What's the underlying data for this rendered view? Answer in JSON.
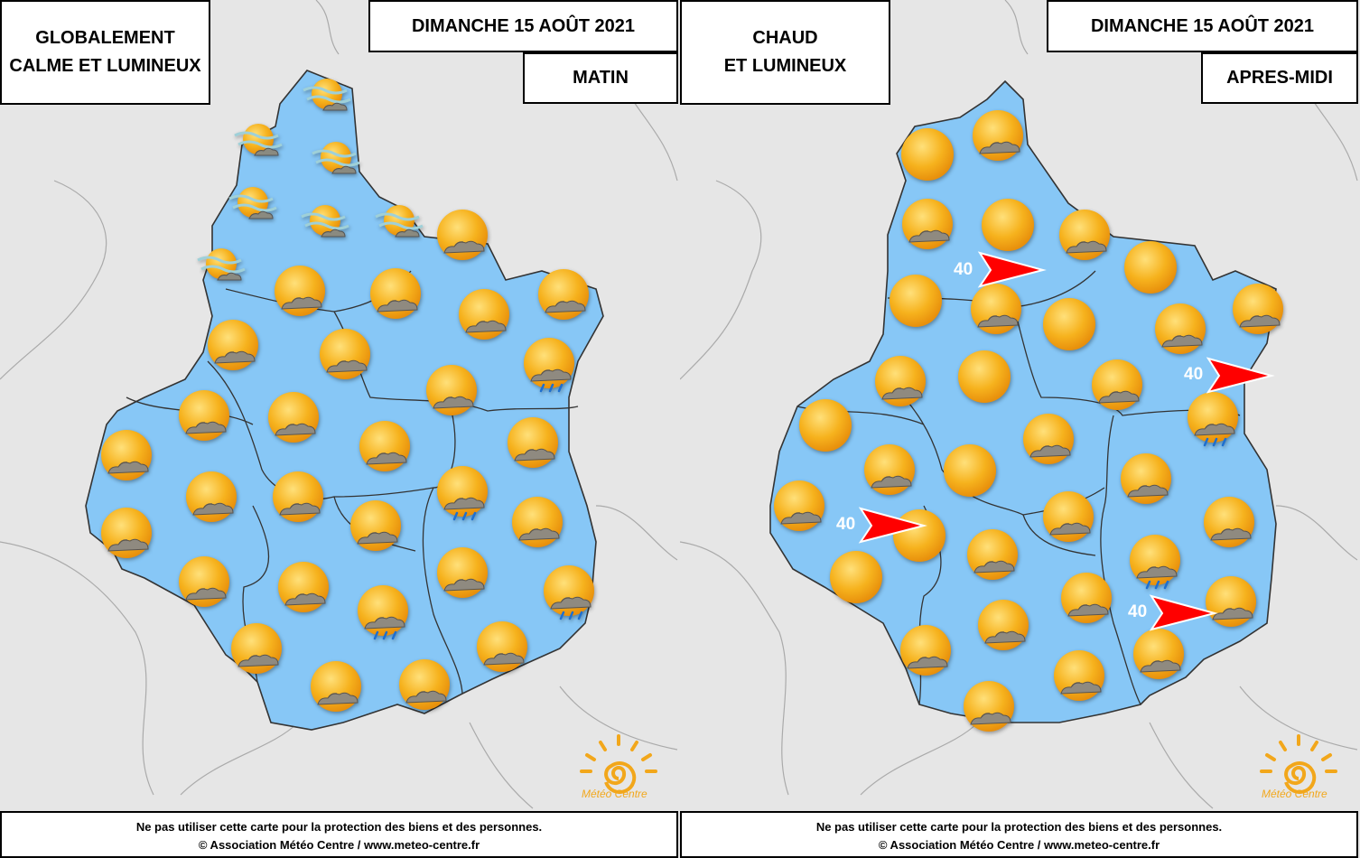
{
  "colors": {
    "region": "#87c7f6",
    "outside": "#e6e6e6",
    "sun": "#f6b21d",
    "wind_arrow": "#ff0000"
  },
  "panels": [
    {
      "date": "DIMANCHE 15 AOÛT 2021",
      "headline": "GLOBALEMENT\nCALME ET LUMINEUX",
      "period": "MATIN",
      "footer_line1": "Ne pas utiliser cette carte pour la protection des biens et des personnes.",
      "footer_line2": "© Association Météo Centre / www.meteo-centre.fr",
      "logo_text": "Météo Centre",
      "icon_types": [
        "sun-haze-icon",
        "sun-cloud-icon",
        "sun-cloud-rain-icon"
      ],
      "wind_gusts": []
    },
    {
      "date": "DIMANCHE 15 AOÛT 2021",
      "headline": "CHAUD\nET LUMINEUX",
      "period": "APRES-MIDI",
      "footer_line1": "Ne pas utiliser cette carte pour la protection des biens et des personnes.",
      "footer_line2": "© Association Météo Centre / www.meteo-centre.fr",
      "logo_text": "Météo Centre",
      "icon_types": [
        "sun-icon",
        "sun-cloud-icon",
        "sun-cloud-rain-icon"
      ],
      "wind_gusts": [
        "40",
        "40",
        "40",
        "40"
      ]
    }
  ]
}
